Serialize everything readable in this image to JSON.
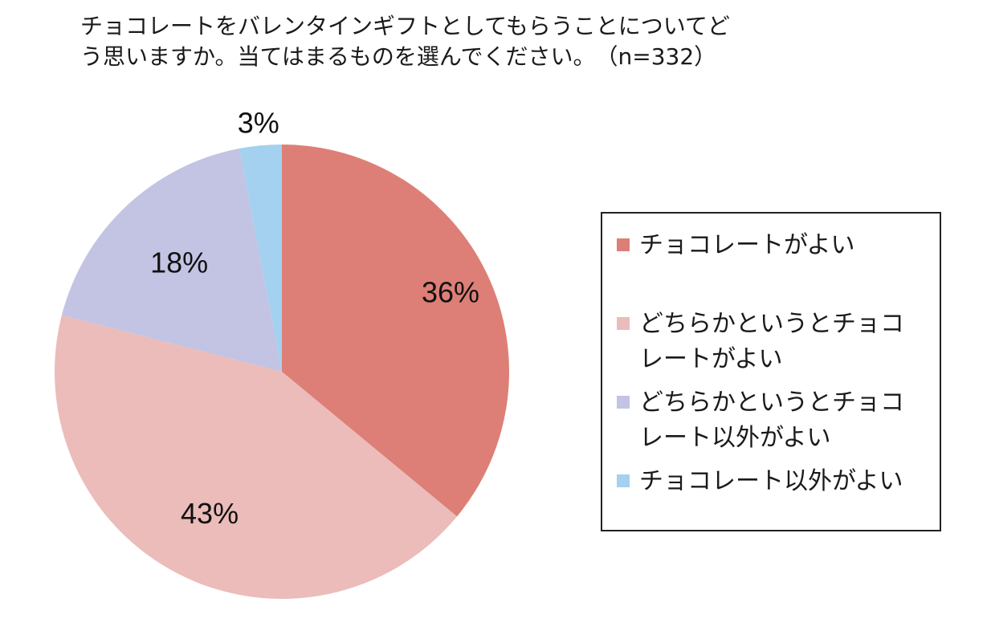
{
  "chart_data": {
    "type": "pie",
    "title_lines": [
      "チョコレートをバレンタインギフトとしてもらうことについてど",
      "う思いますか。当てはまるものを選んでください。　（n=332）"
    ],
    "slices": [
      {
        "label_lines": [
          "チョコレートがよい"
        ],
        "value": 36,
        "label": "36%",
        "color": "#dd7f76"
      },
      {
        "label_lines": [
          "どちらかというとチョコ",
          "レートがよい"
        ],
        "value": 43,
        "label": "43%",
        "color": "#ebbcb9"
      },
      {
        "label_lines": [
          "どちらかというとチョコ",
          "レート以外がよい"
        ],
        "value": 18,
        "label": "18%",
        "color": "#c3c3e3"
      },
      {
        "label_lines": [
          "チョコレート以外がよい"
        ],
        "value": 3,
        "label": "3%",
        "color": "#a3d1ef"
      }
    ],
    "start": "12 o'clock",
    "direction": "clockwise",
    "legend_position": "right",
    "grid": false
  }
}
